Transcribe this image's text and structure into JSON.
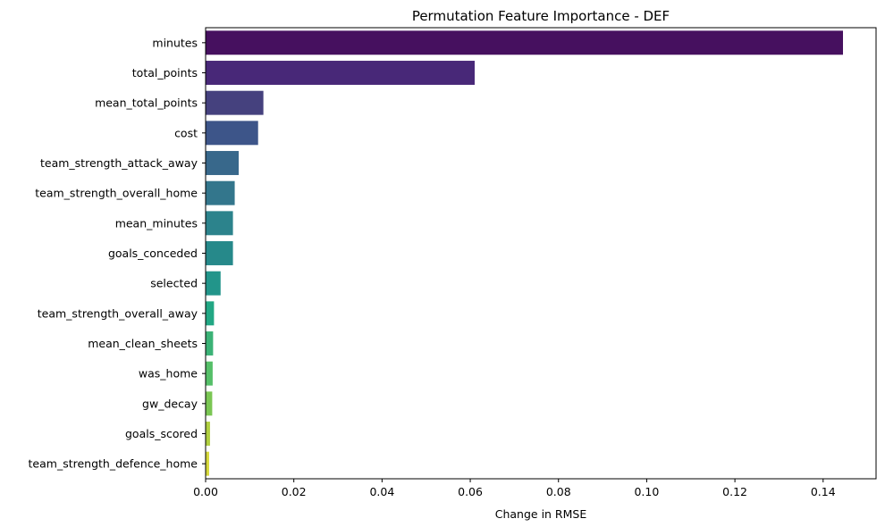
{
  "chart_data": {
    "type": "bar",
    "orientation": "horizontal",
    "title": "Permutation Feature Importance - DEF",
    "xlabel": "Change in RMSE",
    "ylabel": "",
    "xlim": [
      0,
      0.152
    ],
    "x_ticks": [
      "0.00",
      "0.02",
      "0.04",
      "0.06",
      "0.08",
      "0.10",
      "0.12",
      "0.14"
    ],
    "grid": false,
    "legend": "none",
    "colormap": "viridis",
    "categories": [
      "minutes",
      "total_points",
      "mean_total_points",
      "cost",
      "team_strength_attack_away",
      "team_strength_overall_home",
      "mean_minutes",
      "goals_conceded",
      "selected",
      "team_strength_overall_away",
      "mean_clean_sheets",
      "was_home",
      "gw_decay",
      "goals_scored",
      "team_strength_defence_home"
    ],
    "values": [
      0.1445,
      0.061,
      0.0131,
      0.0119,
      0.0075,
      0.0066,
      0.0062,
      0.0062,
      0.0034,
      0.0019,
      0.0017,
      0.0016,
      0.0015,
      0.001,
      0.0008
    ],
    "colors": [
      "#46105F",
      "#482878",
      "#45417E",
      "#3D5589",
      "#38688B",
      "#33768C",
      "#2C838C",
      "#26898A",
      "#22958A",
      "#22A784",
      "#3BB276",
      "#55BF68",
      "#7AC653",
      "#B0CF40",
      "#D6D83B"
    ]
  }
}
